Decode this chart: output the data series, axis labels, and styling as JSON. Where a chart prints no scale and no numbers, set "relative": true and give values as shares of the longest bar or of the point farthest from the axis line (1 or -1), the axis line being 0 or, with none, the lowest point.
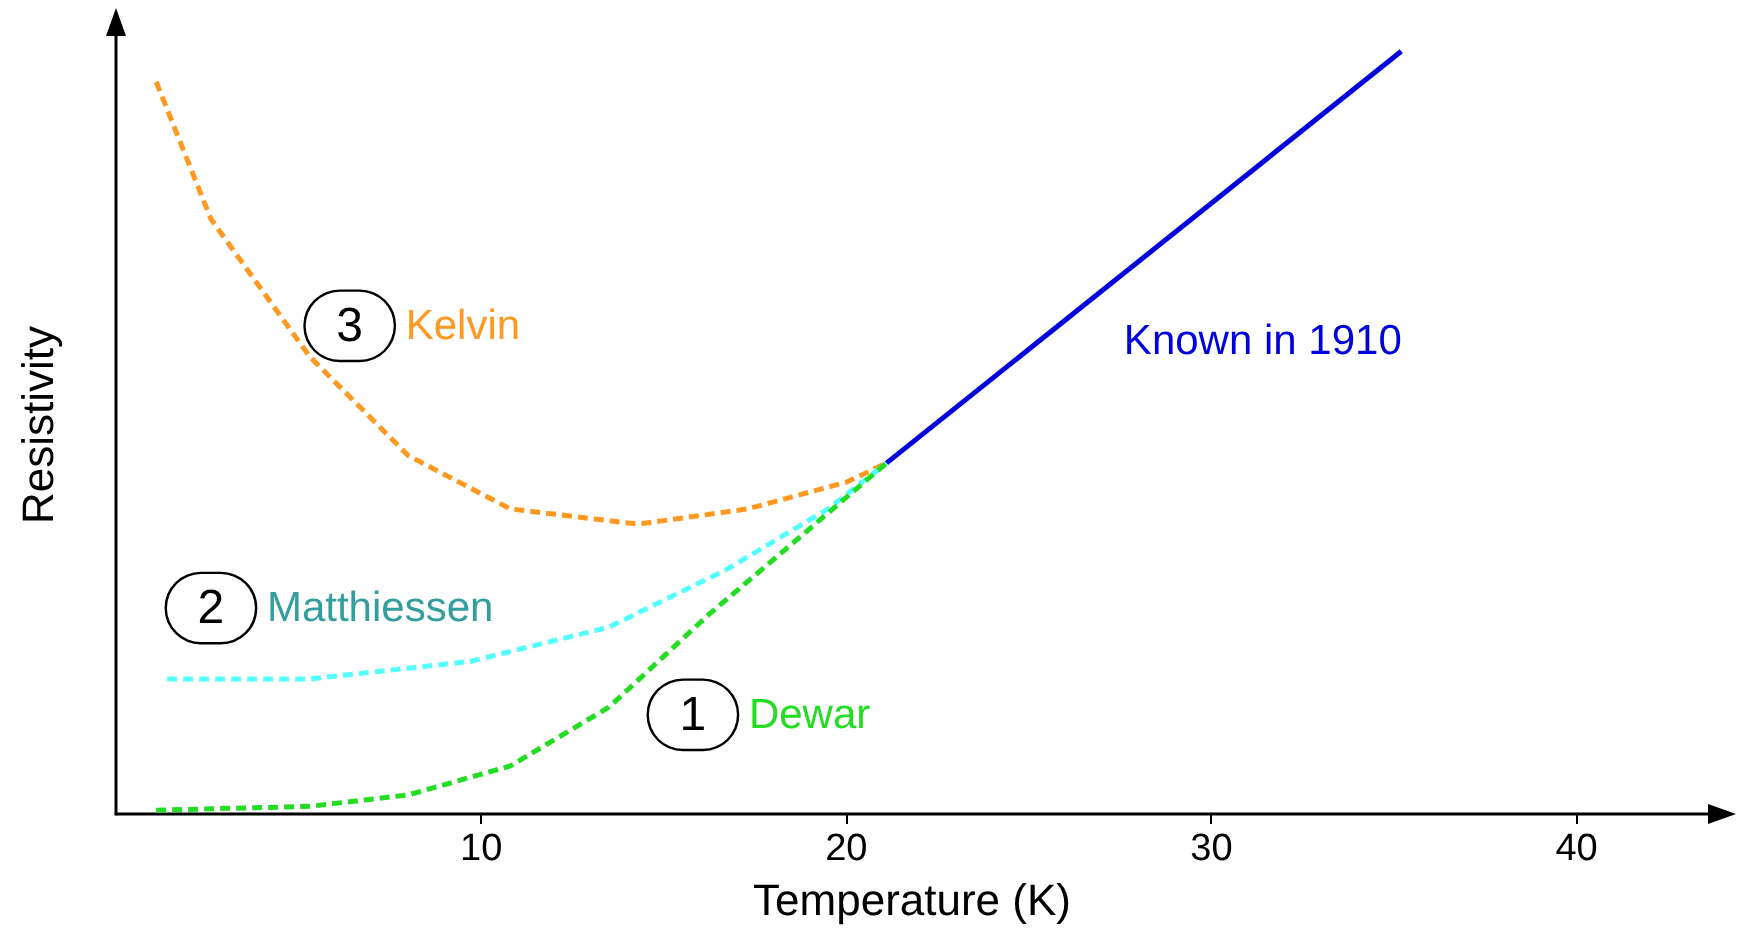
{
  "chart_data": {
    "type": "line",
    "relative": true,
    "xlabel": "Temperature (K)",
    "ylabel": "Resistivity",
    "xlim": [
      0,
      43.6
    ],
    "xticks": [
      10,
      20,
      30,
      40
    ],
    "grid": false,
    "legend": false,
    "marker": "none",
    "tick_labels": "x",
    "series": [
      {
        "name": "Dewar",
        "color": "#22dd22",
        "line_style": "dashed",
        "x": [
          1.1,
          5.3,
          8,
          10.8,
          13.5,
          16.2,
          18.9,
          21.1
        ],
        "values": [
          0.005,
          0.01,
          0.025,
          0.063,
          0.14,
          0.26,
          0.37,
          0.46
        ]
      },
      {
        "name": "Matthiessen",
        "color": "#55ffff",
        "line_style": "dashed",
        "x": [
          1.4,
          5.3,
          9.7,
          13.5,
          16.7,
          19.5,
          21.1
        ],
        "values": [
          0.177,
          0.177,
          0.2,
          0.245,
          0.32,
          0.4,
          0.46
        ]
      },
      {
        "name": "Kelvin",
        "color": "#ff9922",
        "line_style": "dashed",
        "x": [
          1.1,
          2.6,
          5.3,
          8,
          10.8,
          14.3,
          17.3,
          20,
          21.1
        ],
        "values": [
          0.96,
          0.78,
          0.6,
          0.47,
          0.4,
          0.38,
          0.4,
          0.435,
          0.46
        ]
      },
      {
        "name": "Known in 1910",
        "color": "#0000dd",
        "line_style": "solid",
        "x": [
          21.1,
          35.2
        ],
        "values": [
          0.46,
          1
        ]
      }
    ],
    "annotations": [
      {
        "text": "1",
        "x": 15.8,
        "y": 0.13
      },
      {
        "text": "2",
        "x": 2.6,
        "y": 0.27
      },
      {
        "text": "3",
        "x": 6.4,
        "y": 0.64
      }
    ]
  }
}
